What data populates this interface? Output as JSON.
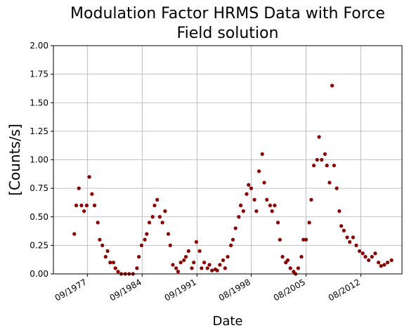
{
  "chart_data": {
    "type": "scatter",
    "title": "Modulation Factor HRMS Data with Force Field solution",
    "xlabel": "Date",
    "ylabel": "[Counts/s]",
    "color": "#8b0000",
    "grid": true,
    "xlim": [
      "1973-05",
      "2017-11"
    ],
    "ylim": [
      0,
      2
    ],
    "xticks": [
      {
        "value": "1977-09",
        "label": "09/1977"
      },
      {
        "value": "1984-09",
        "label": "09/1984"
      },
      {
        "value": "1991-09",
        "label": "09/1991"
      },
      {
        "value": "1998-08",
        "label": "08/1998"
      },
      {
        "value": "2005-08",
        "label": "08/2005"
      },
      {
        "value": "2012-08",
        "label": "08/2012"
      }
    ],
    "yticks": [
      {
        "value": 0,
        "label": "0.00"
      },
      {
        "value": 0.25,
        "label": "0.25"
      },
      {
        "value": 0.5,
        "label": "0.50"
      },
      {
        "value": 0.75,
        "label": "0.75"
      },
      {
        "value": 1,
        "label": "1.00"
      },
      {
        "value": 1.25,
        "label": "1.25"
      },
      {
        "value": 1.5,
        "label": "1.50"
      },
      {
        "value": 1.75,
        "label": "1.75"
      },
      {
        "value": 2,
        "label": "2.00"
      }
    ],
    "x": [
      "1976-01",
      "1976-04",
      "1976-08",
      "1976-12",
      "1977-04",
      "1977-08",
      "1977-12",
      "1978-04",
      "1978-08",
      "1979-01",
      "1979-04",
      "1979-08",
      "1980-01",
      "1980-04",
      "1980-08",
      "1981-01",
      "1981-04",
      "1981-08",
      "1982-01",
      "1982-07",
      "1983-01",
      "1983-07",
      "1984-01",
      "1984-04",
      "1984-08",
      "1985-01",
      "1985-04",
      "1985-08",
      "1986-01",
      "1986-04",
      "1986-08",
      "1986-12",
      "1987-04",
      "1987-08",
      "1988-01",
      "1988-04",
      "1988-08",
      "1989-01",
      "1989-04",
      "1989-08",
      "1990-01",
      "1990-04",
      "1990-08",
      "1991-01",
      "1991-04",
      "1991-08",
      "1992-01",
      "1992-04",
      "1992-08",
      "1993-01",
      "1993-04",
      "1993-08",
      "1994-01",
      "1994-04",
      "1994-08",
      "1995-01",
      "1995-04",
      "1995-08",
      "1996-01",
      "1996-04",
      "1996-08",
      "1997-01",
      "1997-04",
      "1997-08",
      "1998-01",
      "1998-04",
      "1998-08",
      "1999-01",
      "1999-04",
      "1999-08",
      "2000-01",
      "2000-04",
      "2000-08",
      "2001-01",
      "2001-04",
      "2001-08",
      "2002-01",
      "2002-04",
      "2002-08",
      "2003-01",
      "2003-04",
      "2003-08",
      "2004-01",
      "2004-04",
      "2004-08",
      "2005-01",
      "2005-04",
      "2005-08",
      "2006-01",
      "2006-04",
      "2006-08",
      "2007-01",
      "2007-04",
      "2007-08",
      "2008-01",
      "2008-04",
      "2008-08",
      "2008-12",
      "2009-03",
      "2009-07",
      "2009-11",
      "2010-02",
      "2010-06",
      "2010-11",
      "2011-03",
      "2011-08",
      "2012-01",
      "2012-06",
      "2012-11",
      "2013-03",
      "2013-08",
      "2014-01",
      "2014-06",
      "2014-11",
      "2015-03",
      "2015-08",
      "2016-01",
      "2016-07"
    ],
    "values": [
      0.35,
      0.6,
      0.75,
      0.6,
      0.55,
      0.6,
      0.85,
      0.7,
      0.6,
      0.45,
      0.3,
      0.25,
      0.15,
      0.2,
      0.1,
      0.1,
      0.05,
      0.02,
      0,
      0,
      0,
      0,
      0.05,
      0.15,
      0.25,
      0.3,
      0.35,
      0.45,
      0.5,
      0.6,
      0.65,
      0.5,
      0.45,
      0.55,
      0.35,
      0.25,
      0.08,
      0.05,
      0.02,
      0.1,
      0.12,
      0.15,
      0.2,
      0.05,
      0.1,
      0.28,
      0.2,
      0.05,
      0.1,
      0.05,
      0.08,
      0.03,
      0.04,
      0.03,
      0.08,
      0.12,
      0.05,
      0.15,
      0.25,
      0.3,
      0.4,
      0.5,
      0.6,
      0.55,
      0.7,
      0.78,
      0.75,
      0.65,
      0.55,
      0.9,
      1.05,
      0.8,
      0.65,
      0.6,
      0.55,
      0.6,
      0.45,
      0.3,
      0.15,
      0.1,
      0.12,
      0.05,
      0.02,
      0,
      0.05,
      0.15,
      0.3,
      0.3,
      0.45,
      0.65,
      0.95,
      1,
      1.2,
      1,
      1.05,
      0.95,
      0.8,
      1.65,
      0.95,
      0.75,
      0.55,
      0.42,
      0.38,
      0.32,
      0.28,
      0.32,
      0.25,
      0.2,
      0.18,
      0.15,
      0.12,
      0.15,
      0.18,
      0.1,
      0.07,
      0.08,
      0.1,
      0.12
    ]
  }
}
